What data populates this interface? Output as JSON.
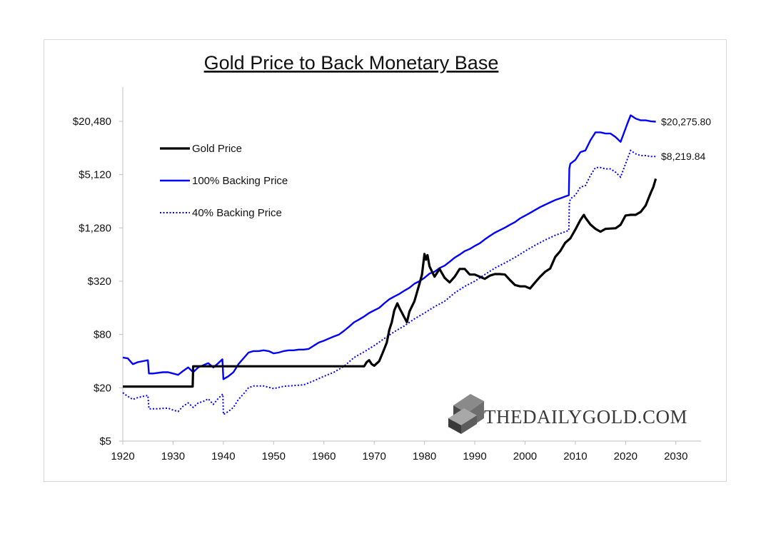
{
  "chart_data": {
    "type": "line",
    "title": "Gold Price to Back Monetary Base",
    "xlabel": "",
    "ylabel": "",
    "yscale": "log2",
    "xlim": [
      1920,
      2035
    ],
    "ylim": [
      5,
      40000
    ],
    "x_ticks": [
      1920,
      1930,
      1940,
      1950,
      1960,
      1970,
      1980,
      1990,
      2000,
      2010,
      2020,
      2030
    ],
    "x_tick_labels": [
      "1920",
      "1930",
      "1940",
      "1950",
      "1960",
      "1970",
      "1980",
      "1990",
      "2000",
      "2010",
      "2020",
      "2030"
    ],
    "y_ticks": [
      5,
      20,
      80,
      320,
      1280,
      5120,
      20480
    ],
    "y_tick_labels": [
      "$5",
      "$20",
      "$80",
      "$320",
      "$1,280",
      "$5,120",
      "$20,480"
    ],
    "legend_position": "top-left",
    "series": [
      {
        "name": "Gold Price",
        "color": "#000000",
        "style": "solid",
        "points": [
          [
            1920,
            20.67
          ],
          [
            1933.9,
            20.67
          ],
          [
            1934,
            35
          ],
          [
            1968,
            35
          ],
          [
            1968.5,
            39
          ],
          [
            1969,
            41
          ],
          [
            1969.5,
            37
          ],
          [
            1970,
            35.5
          ],
          [
            1971,
            40
          ],
          [
            1972,
            55
          ],
          [
            1972.5,
            65
          ],
          [
            1973,
            90
          ],
          [
            1973.5,
            110
          ],
          [
            1974,
            150
          ],
          [
            1974.6,
            180
          ],
          [
            1975,
            160
          ],
          [
            1976,
            125
          ],
          [
            1976.5,
            110
          ],
          [
            1977,
            145
          ],
          [
            1978,
            190
          ],
          [
            1979,
            300
          ],
          [
            1979.5,
            380
          ],
          [
            1980,
            650
          ],
          [
            1980.3,
            560
          ],
          [
            1980.6,
            630
          ],
          [
            1981,
            470
          ],
          [
            1982,
            360
          ],
          [
            1983,
            440
          ],
          [
            1984,
            350
          ],
          [
            1985,
            310
          ],
          [
            1986,
            360
          ],
          [
            1987,
            440
          ],
          [
            1988,
            440
          ],
          [
            1989,
            380
          ],
          [
            1990,
            380
          ],
          [
            1991,
            360
          ],
          [
            1992,
            340
          ],
          [
            1993,
            370
          ],
          [
            1994,
            385
          ],
          [
            1995,
            385
          ],
          [
            1996,
            380
          ],
          [
            1997,
            330
          ],
          [
            1998,
            290
          ],
          [
            1999,
            280
          ],
          [
            2000,
            280
          ],
          [
            2001,
            265
          ],
          [
            2002,
            310
          ],
          [
            2003,
            360
          ],
          [
            2004,
            410
          ],
          [
            2005,
            445
          ],
          [
            2006,
            600
          ],
          [
            2007,
            700
          ],
          [
            2008,
            870
          ],
          [
            2009,
            975
          ],
          [
            2010,
            1225
          ],
          [
            2011,
            1570
          ],
          [
            2011.7,
            1800
          ],
          [
            2012,
            1670
          ],
          [
            2013,
            1400
          ],
          [
            2014,
            1250
          ],
          [
            2015,
            1160
          ],
          [
            2016,
            1250
          ],
          [
            2017,
            1260
          ],
          [
            2018,
            1270
          ],
          [
            2019,
            1390
          ],
          [
            2020,
            1770
          ],
          [
            2021,
            1800
          ],
          [
            2022,
            1800
          ],
          [
            2023,
            1940
          ],
          [
            2024,
            2300
          ],
          [
            2025,
            3200
          ],
          [
            2025.5,
            3700
          ],
          [
            2026,
            4600
          ]
        ]
      },
      {
        "name": "100% Backing Price",
        "color": "#0000ff",
        "style": "solid",
        "points": [
          [
            1920,
            44
          ],
          [
            1921,
            43
          ],
          [
            1922,
            37
          ],
          [
            1923,
            39
          ],
          [
            1924,
            40
          ],
          [
            1925,
            41
          ],
          [
            1925.2,
            29
          ],
          [
            1926,
            29
          ],
          [
            1928,
            30
          ],
          [
            1929,
            30
          ],
          [
            1930,
            29
          ],
          [
            1931,
            28
          ],
          [
            1932,
            31
          ],
          [
            1933,
            34
          ],
          [
            1934,
            30
          ],
          [
            1935,
            34
          ],
          [
            1936,
            36
          ],
          [
            1937,
            38
          ],
          [
            1938,
            34
          ],
          [
            1939,
            38
          ],
          [
            1939.8,
            42
          ],
          [
            1940,
            25
          ],
          [
            1941,
            27
          ],
          [
            1942,
            30
          ],
          [
            1943,
            37
          ],
          [
            1944,
            43
          ],
          [
            1945,
            50
          ],
          [
            1946,
            52
          ],
          [
            1947,
            52
          ],
          [
            1948,
            53
          ],
          [
            1949,
            52
          ],
          [
            1950,
            49
          ],
          [
            1951,
            50
          ],
          [
            1952,
            52
          ],
          [
            1953,
            53
          ],
          [
            1954,
            53
          ],
          [
            1955,
            54
          ],
          [
            1956,
            54
          ],
          [
            1957,
            55
          ],
          [
            1958,
            60
          ],
          [
            1959,
            65
          ],
          [
            1960,
            68
          ],
          [
            1961,
            72
          ],
          [
            1962,
            76
          ],
          [
            1963,
            80
          ],
          [
            1964,
            88
          ],
          [
            1965,
            98
          ],
          [
            1966,
            110
          ],
          [
            1967,
            118
          ],
          [
            1968,
            128
          ],
          [
            1969,
            140
          ],
          [
            1970,
            150
          ],
          [
            1971,
            160
          ],
          [
            1972,
            180
          ],
          [
            1973,
            200
          ],
          [
            1974,
            215
          ],
          [
            1975,
            230
          ],
          [
            1976,
            250
          ],
          [
            1977,
            270
          ],
          [
            1978,
            300
          ],
          [
            1979,
            320
          ],
          [
            1980,
            350
          ],
          [
            1981,
            390
          ],
          [
            1982,
            410
          ],
          [
            1983,
            450
          ],
          [
            1984,
            480
          ],
          [
            1985,
            530
          ],
          [
            1986,
            590
          ],
          [
            1987,
            640
          ],
          [
            1988,
            700
          ],
          [
            1989,
            740
          ],
          [
            1990,
            800
          ],
          [
            1991,
            860
          ],
          [
            1992,
            950
          ],
          [
            1993,
            1040
          ],
          [
            1994,
            1130
          ],
          [
            1995,
            1210
          ],
          [
            1996,
            1290
          ],
          [
            1997,
            1390
          ],
          [
            1998,
            1490
          ],
          [
            1999,
            1640
          ],
          [
            2000,
            1760
          ],
          [
            2001,
            1890
          ],
          [
            2002,
            2040
          ],
          [
            2003,
            2200
          ],
          [
            2004,
            2340
          ],
          [
            2005,
            2490
          ],
          [
            2006,
            2640
          ],
          [
            2007,
            2760
          ],
          [
            2008,
            2900
          ],
          [
            2008.7,
            3000
          ],
          [
            2008.8,
            6000
          ],
          [
            2009,
            6800
          ],
          [
            2010,
            7500
          ],
          [
            2011,
            9200
          ],
          [
            2012,
            9600
          ],
          [
            2013,
            12500
          ],
          [
            2014,
            15400
          ],
          [
            2015,
            15400
          ],
          [
            2016,
            14900
          ],
          [
            2017,
            14900
          ],
          [
            2018,
            13600
          ],
          [
            2019,
            12000
          ],
          [
            2020,
            17000
          ],
          [
            2020.3,
            19000
          ],
          [
            2021,
            24000
          ],
          [
            2022,
            22000
          ],
          [
            2023,
            21000
          ],
          [
            2024,
            21000
          ],
          [
            2025,
            20500
          ],
          [
            2026,
            20275.8
          ]
        ]
      },
      {
        "name": "40% Backing Price",
        "color": "#0000ff",
        "style": "dotted",
        "points": [
          [
            1920,
            17.6
          ],
          [
            1921,
            16
          ],
          [
            1922,
            14.8
          ],
          [
            1923,
            15.5
          ],
          [
            1924,
            16
          ],
          [
            1925,
            16.4
          ],
          [
            1925.2,
            11.6
          ],
          [
            1927,
            11.6
          ],
          [
            1929,
            11.8
          ],
          [
            1930,
            11.2
          ],
          [
            1931,
            10.8
          ],
          [
            1932,
            12.4
          ],
          [
            1933,
            13.5
          ],
          [
            1934,
            12
          ],
          [
            1935,
            13.5
          ],
          [
            1936,
            14
          ],
          [
            1937,
            15
          ],
          [
            1938,
            13
          ],
          [
            1939,
            15.2
          ],
          [
            1939.9,
            17
          ],
          [
            1940,
            10
          ],
          [
            1941,
            10.8
          ],
          [
            1942,
            12
          ],
          [
            1943,
            14.8
          ],
          [
            1944,
            17
          ],
          [
            1945,
            20
          ],
          [
            1946,
            21
          ],
          [
            1948,
            21
          ],
          [
            1950,
            19.6
          ],
          [
            1952,
            20.8
          ],
          [
            1954,
            21.2
          ],
          [
            1956,
            21.6
          ],
          [
            1958,
            24
          ],
          [
            1960,
            27
          ],
          [
            1962,
            30
          ],
          [
            1964,
            35
          ],
          [
            1966,
            44
          ],
          [
            1968,
            51
          ],
          [
            1970,
            60
          ],
          [
            1972,
            72
          ],
          [
            1974,
            86
          ],
          [
            1976,
            100
          ],
          [
            1978,
            120
          ],
          [
            1980,
            140
          ],
          [
            1982,
            165
          ],
          [
            1984,
            190
          ],
          [
            1986,
            236
          ],
          [
            1988,
            280
          ],
          [
            1990,
            320
          ],
          [
            1992,
            380
          ],
          [
            1994,
            450
          ],
          [
            1996,
            515
          ],
          [
            1998,
            595
          ],
          [
            2000,
            700
          ],
          [
            2002,
            815
          ],
          [
            2004,
            935
          ],
          [
            2006,
            1055
          ],
          [
            2008,
            1160
          ],
          [
            2008.7,
            1200
          ],
          [
            2008.8,
            2400
          ],
          [
            2009,
            2720
          ],
          [
            2010,
            3000
          ],
          [
            2011,
            3700
          ],
          [
            2012,
            3850
          ],
          [
            2013,
            5000
          ],
          [
            2014,
            6150
          ],
          [
            2015,
            6150
          ],
          [
            2016,
            5950
          ],
          [
            2017,
            5950
          ],
          [
            2018,
            5450
          ],
          [
            2019,
            4800
          ],
          [
            2020,
            6800
          ],
          [
            2021,
            9600
          ],
          [
            2022,
            8800
          ],
          [
            2023,
            8400
          ],
          [
            2024,
            8400
          ],
          [
            2025,
            8200
          ],
          [
            2026,
            8219.84
          ]
        ]
      }
    ],
    "end_labels": [
      "$20,275.80",
      "$8,219.84"
    ]
  },
  "watermark": {
    "text": "THEDAILYGOLD.COM"
  }
}
